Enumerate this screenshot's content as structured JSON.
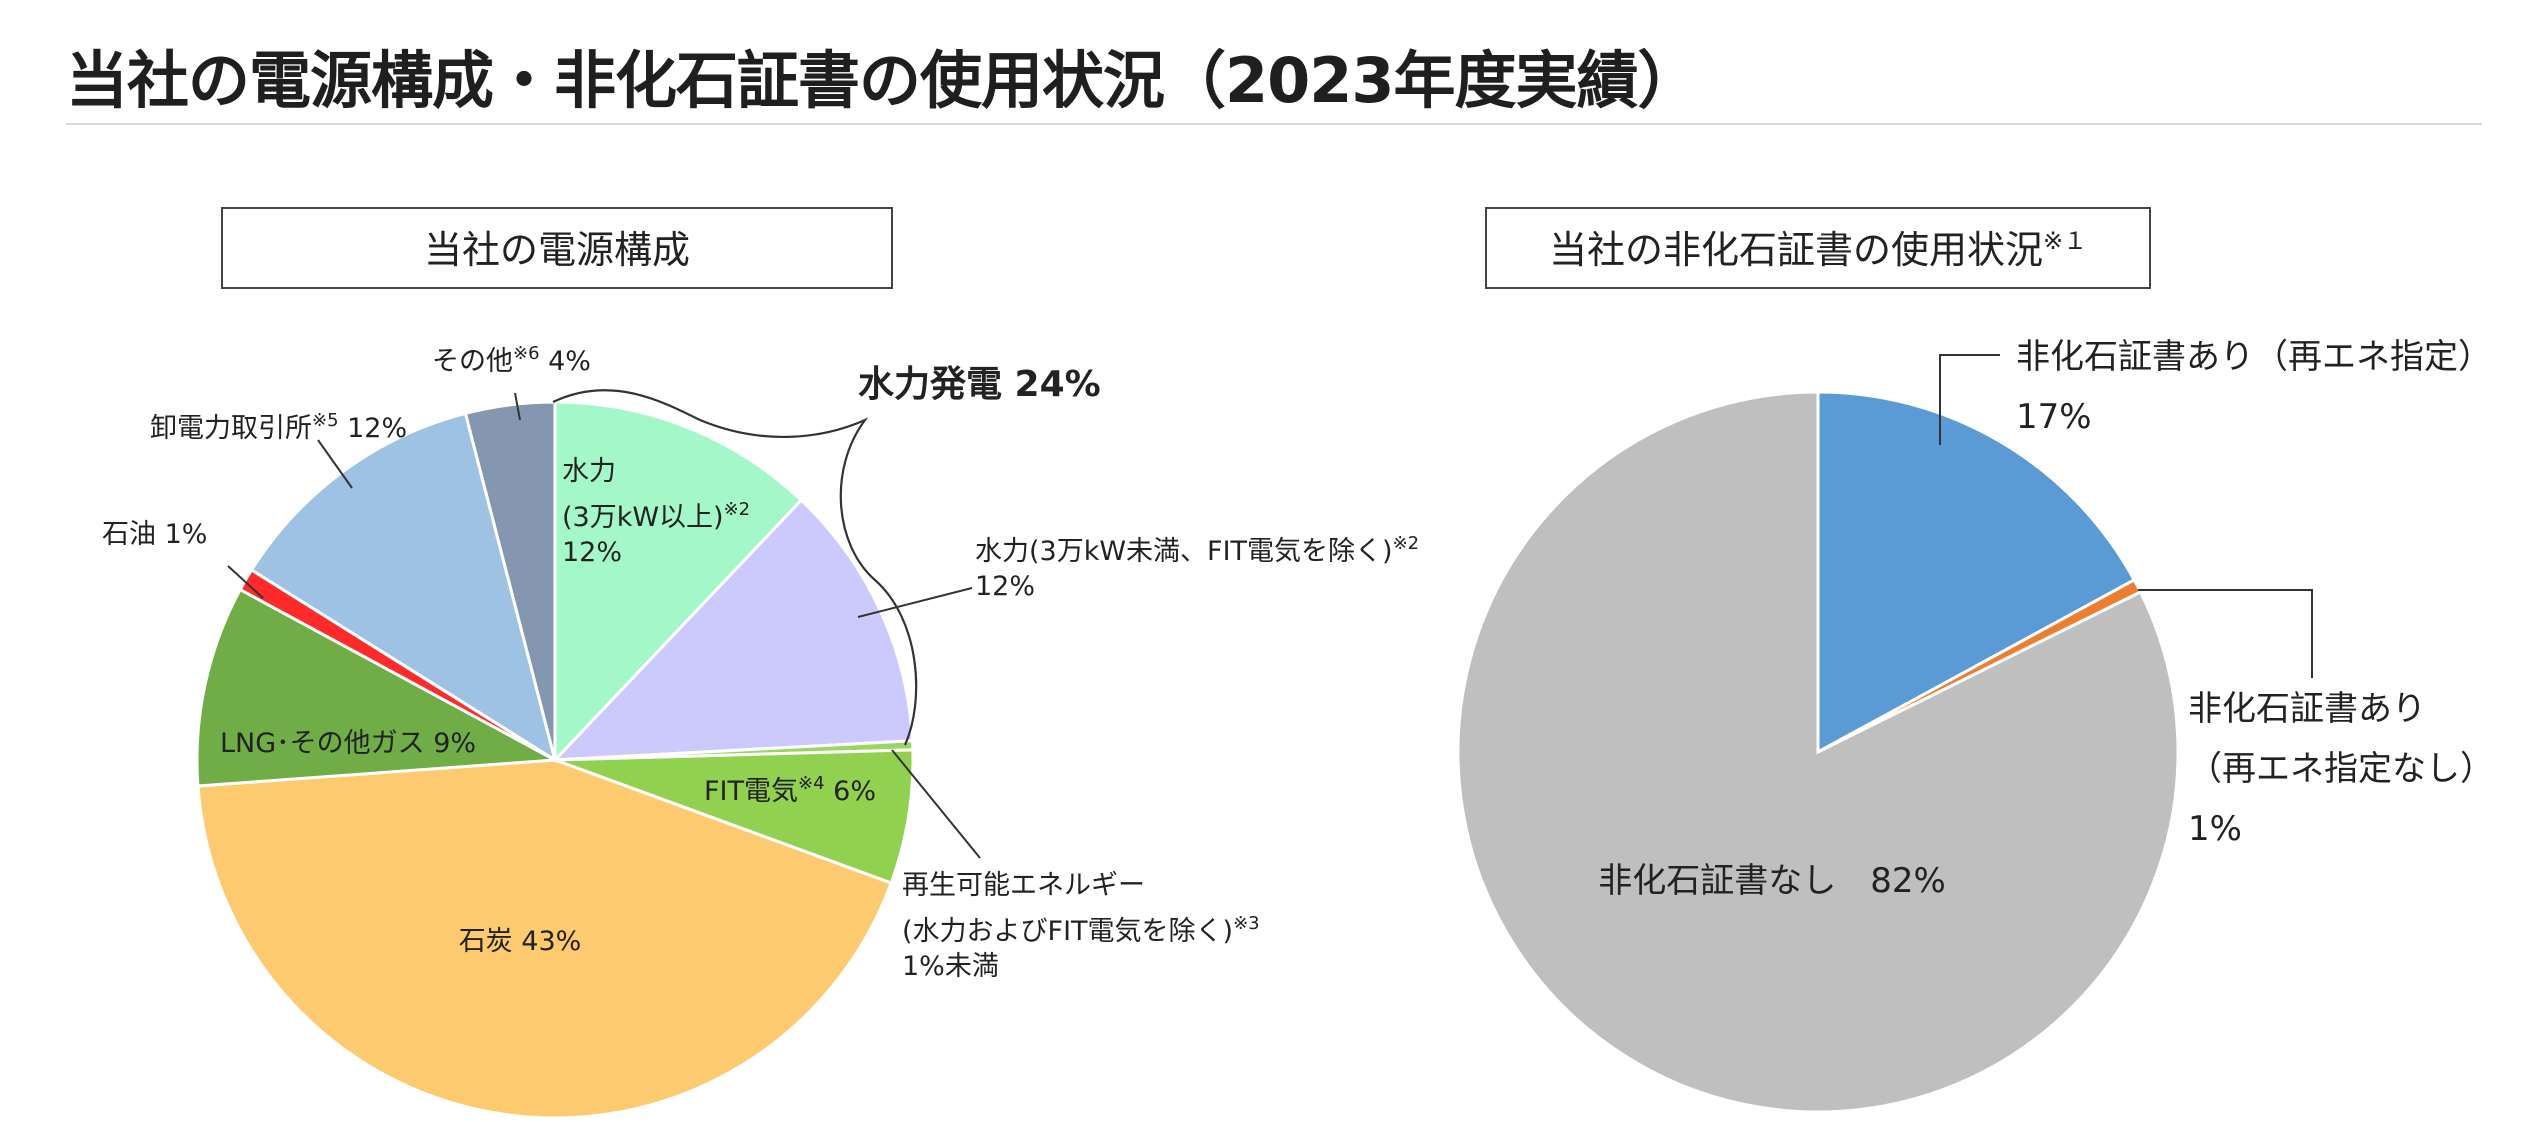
{
  "page": {
    "title": "当社の電源構成・非化石証書の使用状況（2023年度実績）"
  },
  "chart_data": [
    {
      "type": "pie",
      "title": "当社の電源構成",
      "start_angle": 0,
      "direction": "clockwise",
      "slices": [
        {
          "key": "hydro-large",
          "value": 12,
          "color": "#a3f7c9",
          "lines": [
            "水力",
            "(3万kW以上)|※2",
            "12%"
          ]
        },
        {
          "key": "hydro-small",
          "value": 12,
          "color": "#cccafc",
          "lines": [
            "水力(3万kW未満、FIT電気を除く)|※2",
            "12%"
          ]
        },
        {
          "key": "renewable-other",
          "value": 0.4,
          "color": "#9bd564",
          "lines": [
            "再生可能エネルギー",
            "(水力およびFIT電気を除く)|※3",
            "1%未満"
          ]
        },
        {
          "key": "fit",
          "value": 6,
          "color": "#92d050",
          "lines": [
            "FIT電気|※4| 6%"
          ]
        },
        {
          "key": "coal",
          "value": 43,
          "color": "#fdca70",
          "lines": [
            "石炭 43%"
          ]
        },
        {
          "key": "lng",
          "value": 9,
          "color": "#70ad47",
          "lines": [
            "LNG･その他ガス 9%"
          ]
        },
        {
          "key": "oil",
          "value": 1,
          "color": "#ff2a2a",
          "lines": [
            "石油 1%"
          ]
        },
        {
          "key": "jepx",
          "value": 12,
          "color": "#9ec2e4",
          "lines": [
            "卸電力取引所|※5| 12%"
          ]
        },
        {
          "key": "other",
          "value": 4,
          "color": "#8496b0",
          "lines": [
            "その他|※6| 4%"
          ]
        }
      ],
      "group_annotation": {
        "label": "水力発電 24%",
        "slices": [
          "hydro-large",
          "hydro-small"
        ]
      }
    },
    {
      "type": "pie",
      "title": "当社の非化石証書の使用状況",
      "title_note": "※１",
      "start_angle": 0,
      "direction": "clockwise",
      "slices": [
        {
          "key": "cert-renewable",
          "value": 17,
          "color": "#5b9bd5",
          "lines": [
            "非化石証書あり（再エネ指定）",
            "17%"
          ]
        },
        {
          "key": "cert-nonrenewable",
          "value": 0.6,
          "color": "#ed7d31",
          "lines": [
            "非化石証書あり",
            "（再エネ指定なし）",
            "1%"
          ]
        },
        {
          "key": "no-cert",
          "value": 82,
          "color": "#bfbfbf",
          "lines": [
            "非化石証書なし　82%"
          ]
        }
      ]
    }
  ]
}
